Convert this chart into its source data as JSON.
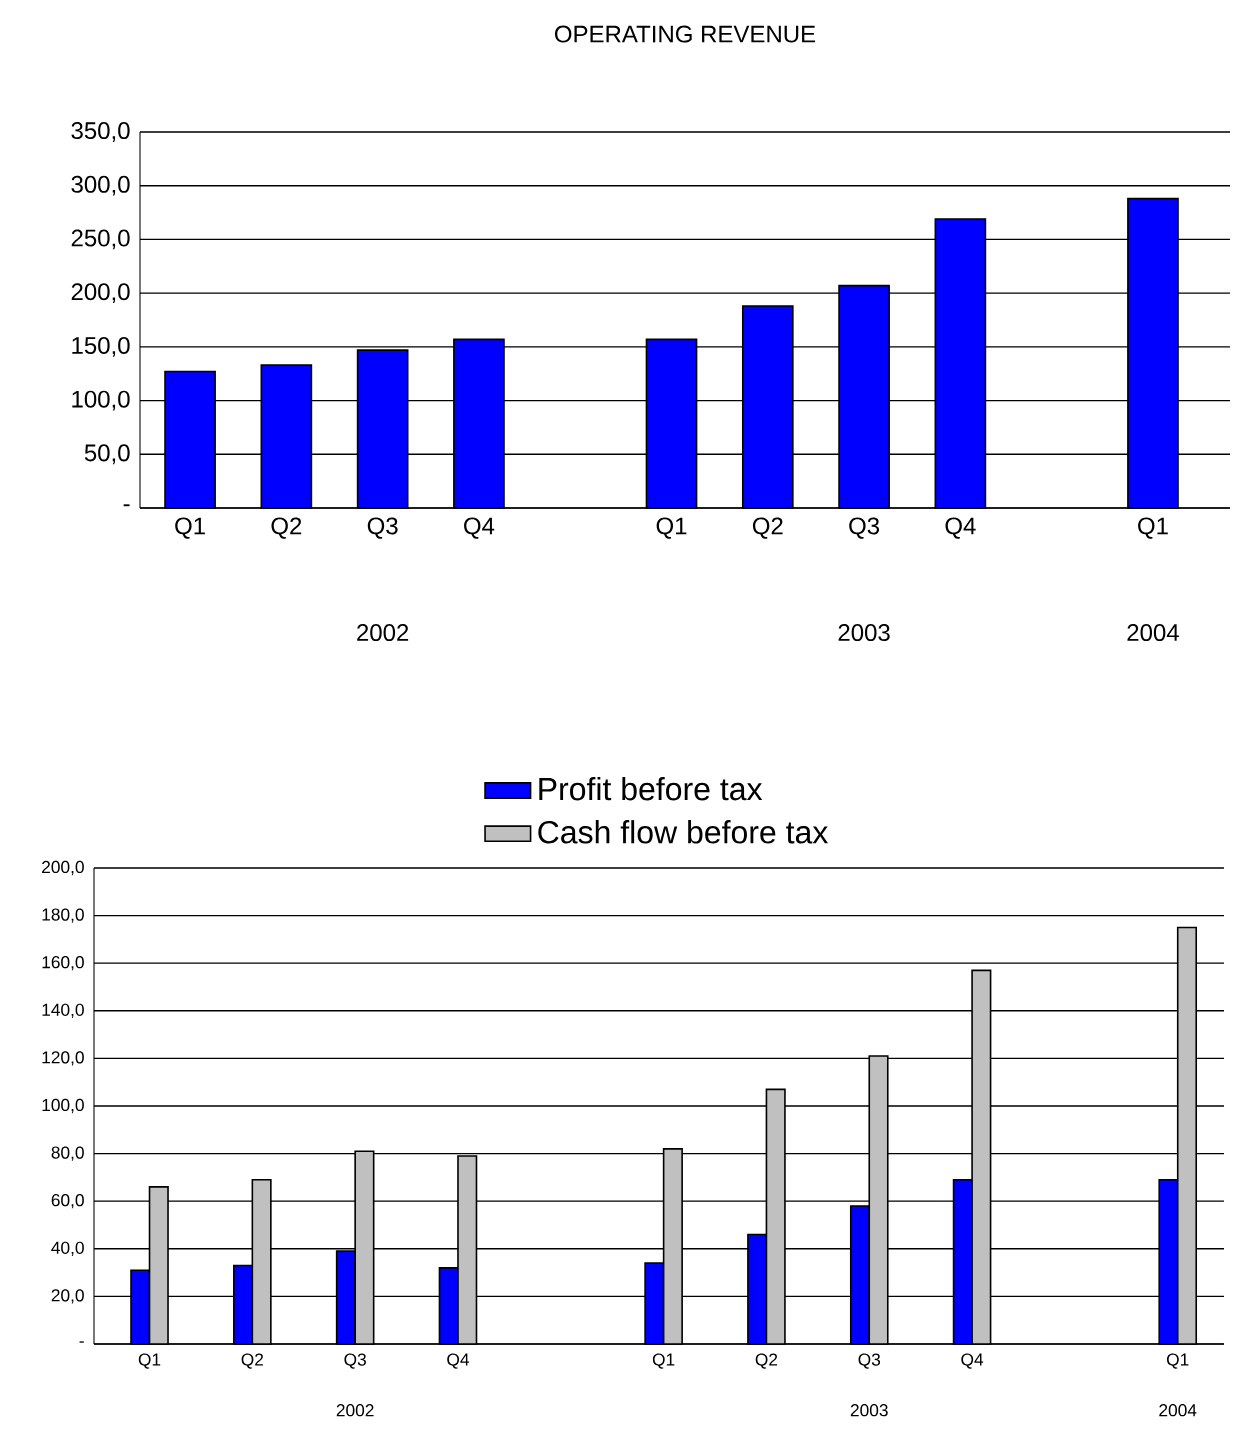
{
  "chart_data": [
    {
      "type": "bar",
      "title": "OPERATING REVENUE",
      "categories": [
        "Q1",
        "Q2",
        "Q3",
        "Q4",
        null,
        "Q1",
        "Q2",
        "Q3",
        "Q4",
        null,
        "Q1"
      ],
      "values": [
        127,
        133,
        147,
        157,
        null,
        157,
        188,
        207,
        269,
        null,
        288
      ],
      "color": "#0000ff",
      "annotations": [
        "2002",
        "2003",
        "2004"
      ],
      "ylim": [
        0,
        350
      ],
      "yticks": [
        {
          "value": 0,
          "label": "-"
        },
        {
          "value": 50,
          "label": "50,0"
        },
        {
          "value": 100,
          "label": "100,0"
        },
        {
          "value": 150,
          "label": "150,0"
        },
        {
          "value": 200,
          "label": "200,0"
        },
        {
          "value": 250,
          "label": "250,0"
        },
        {
          "value": 300,
          "label": "300,0"
        },
        {
          "value": 350,
          "label": "350,0"
        }
      ],
      "grid": "y"
    },
    {
      "type": "bar",
      "categories": [
        "Q1",
        "Q2",
        "Q3",
        "Q4",
        null,
        "Q1",
        "Q2",
        "Q3",
        "Q4",
        null,
        "Q1"
      ],
      "series": [
        {
          "name": "Profit before tax",
          "color": "#0000ff",
          "values": [
            31,
            33,
            39,
            32,
            null,
            34,
            46,
            58,
            69,
            null,
            69
          ]
        },
        {
          "name": "Cash flow before tax",
          "color": "#c0c0c0",
          "values": [
            66,
            69,
            81,
            79,
            null,
            82,
            107,
            121,
            157,
            null,
            175
          ]
        }
      ],
      "annotations": [
        "2002",
        "2003",
        "2004"
      ],
      "ylim": [
        0,
        200
      ],
      "yticks": [
        {
          "value": 0,
          "label": "-"
        },
        {
          "value": 20,
          "label": "20,0"
        },
        {
          "value": 40,
          "label": "40,0"
        },
        {
          "value": 60,
          "label": "60,0"
        },
        {
          "value": 80,
          "label": "80,0"
        },
        {
          "value": 100,
          "label": "100,0"
        },
        {
          "value": 120,
          "label": "120,0"
        },
        {
          "value": 140,
          "label": "140,0"
        },
        {
          "value": 160,
          "label": "160,0"
        },
        {
          "value": 180,
          "label": "180,0"
        },
        {
          "value": 200,
          "label": "200,0"
        }
      ],
      "grid": "y",
      "legend": "top"
    }
  ]
}
